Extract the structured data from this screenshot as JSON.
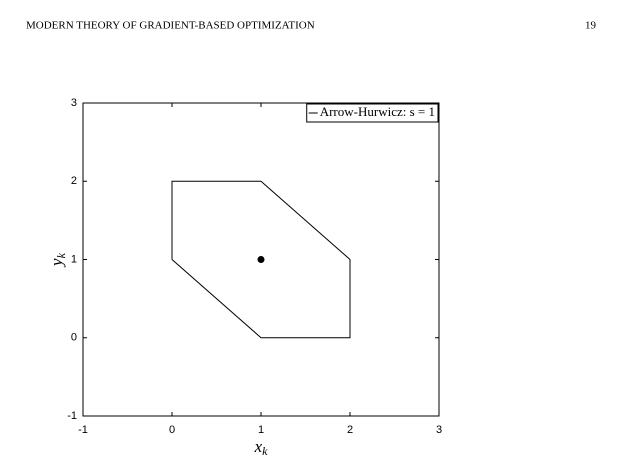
{
  "header": {
    "title": "MODERN THEORY OF GRADIENT-BASED OPTIMIZATION",
    "page": "19"
  },
  "chart_data": {
    "type": "line",
    "xlabel": {
      "symbol": "x",
      "subscript": "k"
    },
    "ylabel": {
      "symbol": "y",
      "subscript": "k"
    },
    "xlim": [
      -1,
      3
    ],
    "xticks": [
      -1,
      0,
      1,
      2,
      3
    ],
    "ylim": [
      -1,
      3
    ],
    "yticks": [
      -1,
      0,
      1,
      2,
      3
    ],
    "legend": "upper right",
    "series": [
      {
        "name": "Arrow-Hurwicz: s = 1",
        "color": "#000000",
        "x": [
          0,
          0,
          1,
          2,
          2,
          1,
          0
        ],
        "values": [
          1,
          2,
          2,
          1,
          0,
          0,
          1
        ]
      },
      {
        "color": "#000000",
        "marker": "dot",
        "x": [
          1
        ],
        "values": [
          1
        ]
      }
    ]
  }
}
